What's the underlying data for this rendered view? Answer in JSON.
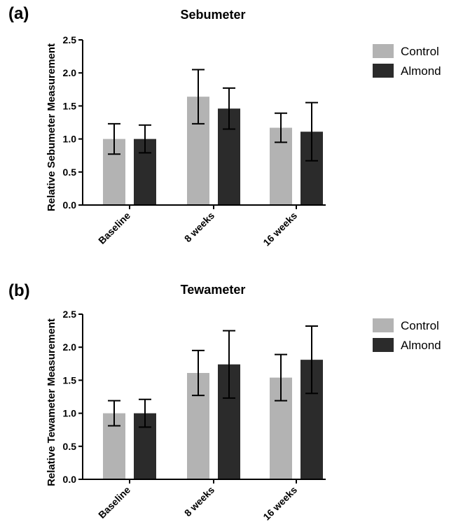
{
  "chart_data": [
    {
      "type": "bar",
      "panel_label": "(a)",
      "title": "Sebumeter",
      "xlabel": "",
      "ylabel": "Relative Sebumeter Measurement",
      "ylim": [
        0,
        2.5
      ],
      "yticks": [
        "0.0",
        "0.5",
        "1.0",
        "1.5",
        "2.0",
        "2.5"
      ],
      "categories": [
        "Baseline",
        "8 weeks",
        "16 weeks"
      ],
      "grid": false,
      "legend_position": "right",
      "series": [
        {
          "name": "Control",
          "color": "#b3b3b3",
          "values": [
            1.0,
            1.64,
            1.17
          ],
          "errors": [
            0.23,
            0.41,
            0.22
          ]
        },
        {
          "name": "Almond",
          "color": "#2b2b2b",
          "values": [
            1.0,
            1.46,
            1.11
          ],
          "errors": [
            0.21,
            0.31,
            0.44
          ]
        }
      ]
    },
    {
      "type": "bar",
      "panel_label": "(b)",
      "title": "Tewameter",
      "xlabel": "",
      "ylabel": "Relative Tewameter Measurement",
      "ylim": [
        0,
        2.5
      ],
      "yticks": [
        "0.0",
        "0.5",
        "1.0",
        "1.5",
        "2.0",
        "2.5"
      ],
      "categories": [
        "Baseline",
        "8 weeks",
        "16 weeks"
      ],
      "grid": false,
      "legend_position": "right",
      "series": [
        {
          "name": "Control",
          "color": "#b3b3b3",
          "values": [
            1.0,
            1.61,
            1.54
          ],
          "errors": [
            0.19,
            0.34,
            0.35
          ]
        },
        {
          "name": "Almond",
          "color": "#2b2b2b",
          "values": [
            1.0,
            1.74,
            1.81
          ],
          "errors": [
            0.21,
            0.51,
            0.51
          ]
        }
      ]
    }
  ]
}
